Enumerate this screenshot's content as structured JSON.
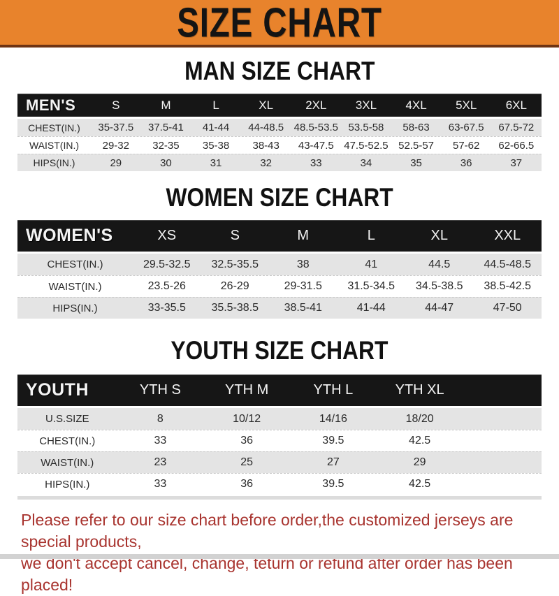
{
  "banner": {
    "title": "SIZE CHART"
  },
  "colors": {
    "banner_orange": "#e8832c",
    "banner_border": "#6e3414",
    "header_black": "#161616",
    "row_gray": "#e4e4e4",
    "footer_red": "#a8332e"
  },
  "sections": [
    {
      "id": "men",
      "title": "MAN SIZE CHART",
      "table": {
        "label": "MEN'S",
        "columns": [
          "S",
          "M",
          "L",
          "XL",
          "2XL",
          "3XL",
          "4XL",
          "5XL",
          "6XL"
        ],
        "rows": [
          {
            "label": "CHEST(IN.)",
            "values": [
              "35-37.5",
              "37.5-41",
              "41-44",
              "44-48.5",
              "48.5-53.5",
              "53.5-58",
              "58-63",
              "63-67.5",
              "67.5-72"
            ]
          },
          {
            "label": "WAIST(IN.)",
            "values": [
              "29-32",
              "32-35",
              "35-38",
              "38-43",
              "43-47.5",
              "47.5-52.5",
              "52.5-57",
              "57-62",
              "62-66.5"
            ]
          },
          {
            "label": "HIPS(IN.)",
            "values": [
              "29",
              "30",
              "31",
              "32",
              "33",
              "34",
              "35",
              "36",
              "37"
            ]
          }
        ]
      }
    },
    {
      "id": "women",
      "title": "WOMEN SIZE CHART",
      "table": {
        "label": "WOMEN'S",
        "columns": [
          "XS",
          "S",
          "M",
          "L",
          "XL",
          "XXL"
        ],
        "rows": [
          {
            "label": "CHEST(IN.)",
            "values": [
              "29.5-32.5",
              "32.5-35.5",
              "38",
              "41",
              "44.5",
              "44.5-48.5"
            ]
          },
          {
            "label": "WAIST(IN.)",
            "values": [
              "23.5-26",
              "26-29",
              "29-31.5",
              "31.5-34.5",
              "34.5-38.5",
              "38.5-42.5"
            ]
          },
          {
            "label": "HIPS(IN.)",
            "values": [
              "33-35.5",
              "35.5-38.5",
              "38.5-41",
              "41-44",
              "44-47",
              "47-50"
            ]
          }
        ]
      }
    },
    {
      "id": "youth",
      "title": "YOUTH SIZE CHART",
      "table": {
        "label": "YOUTH",
        "columns": [
          "YTH S",
          "YTH M",
          "YTH L",
          "YTH XL"
        ],
        "rows": [
          {
            "label": "U.S.SIZE",
            "values": [
              "8",
              "10/12",
              "14/16",
              "18/20"
            ]
          },
          {
            "label": "CHEST(IN.)",
            "values": [
              "33",
              "36",
              "39.5",
              "42.5"
            ]
          },
          {
            "label": "WAIST(IN.)",
            "values": [
              "23",
              "25",
              "27",
              "29"
            ]
          },
          {
            "label": "HIPS(IN.)",
            "values": [
              "33",
              "36",
              "39.5",
              "42.5"
            ]
          }
        ]
      }
    }
  ],
  "footer": {
    "line1": "Please refer to our size chart before order,the customized jerseys are special products,",
    "line2": "we don't accept cancel, change, teturn or refund after order has been placed!"
  }
}
